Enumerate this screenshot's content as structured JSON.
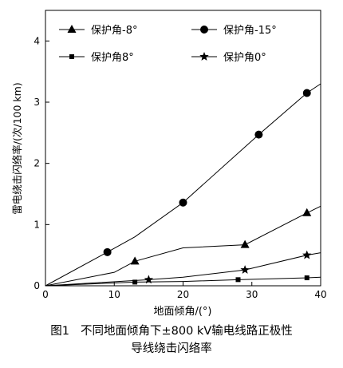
{
  "chart_data": {
    "type": "line",
    "title": "",
    "xlabel": "地面倾角/(°)",
    "ylabel": "雷电绕击闪络率/(次/100 km)",
    "xlim": [
      0,
      40
    ],
    "ylim": [
      0,
      4.5
    ],
    "xticks": [
      0,
      10,
      20,
      30,
      40
    ],
    "yticks": [
      0,
      1,
      2,
      3,
      4
    ],
    "grid": false,
    "legend_position": "top, inside plot",
    "series": [
      {
        "name": "保护角-8°",
        "marker": "triangle",
        "x": [
          0,
          10,
          13,
          20,
          29,
          38,
          40
        ],
        "y": [
          0,
          0.22,
          0.4,
          0.62,
          0.67,
          1.19,
          1.3
        ],
        "marker_x": [
          13,
          29,
          38
        ],
        "marker_y": [
          0.4,
          0.67,
          1.19
        ]
      },
      {
        "name": "保护角-15°",
        "marker": "circle",
        "x": [
          0,
          9,
          13,
          20,
          31,
          38,
          40
        ],
        "y": [
          0,
          0.55,
          0.8,
          1.36,
          2.47,
          3.15,
          3.3
        ],
        "marker_x": [
          9,
          20,
          31,
          38
        ],
        "marker_y": [
          0.55,
          1.36,
          2.47,
          3.15
        ]
      },
      {
        "name": "保护角8°",
        "marker": "square",
        "x": [
          0,
          13,
          20,
          28,
          38,
          40
        ],
        "y": [
          0,
          0.06,
          0.07,
          0.1,
          0.13,
          0.14
        ],
        "marker_x": [
          13,
          28,
          38
        ],
        "marker_y": [
          0.06,
          0.1,
          0.13
        ]
      },
      {
        "name": "保护角0°",
        "marker": "star",
        "x": [
          0,
          15,
          20,
          29,
          38,
          40
        ],
        "y": [
          0,
          0.1,
          0.14,
          0.26,
          0.5,
          0.54
        ],
        "marker_x": [
          15,
          29,
          38
        ],
        "marker_y": [
          0.1,
          0.26,
          0.5
        ]
      }
    ]
  },
  "caption": {
    "number": "图1",
    "line1": "不同地面倾角下±800 kV输电线路正极性",
    "line2": "导线绕击闪络率"
  }
}
